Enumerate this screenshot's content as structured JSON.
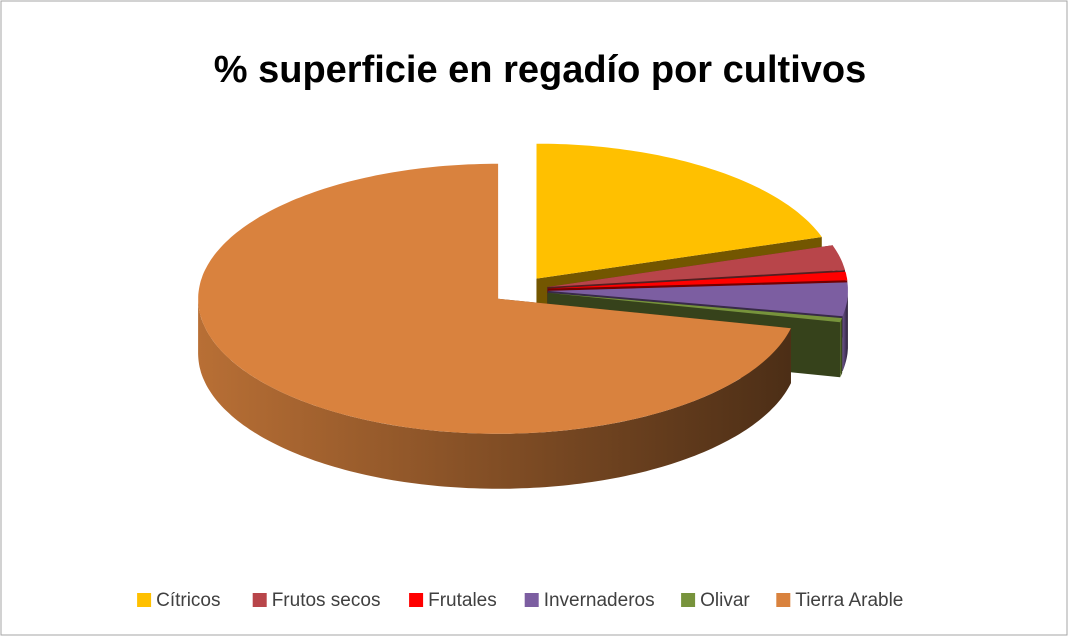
{
  "chart_data": {
    "type": "pie",
    "title": "% superficie en regadío por cultivos",
    "categories": [
      "Cítricos",
      "Frutos secos",
      "Frutales",
      "Invernaderos",
      "Olivar",
      "Tierra Arable"
    ],
    "values": [
      20,
      3,
      1,
      4,
      0.5,
      71.5
    ],
    "colors": [
      "#ffc000",
      "#b8454a",
      "#ff0000",
      "#7c5ea1",
      "#77933c",
      "#d9823e"
    ],
    "legend": "bottom"
  }
}
